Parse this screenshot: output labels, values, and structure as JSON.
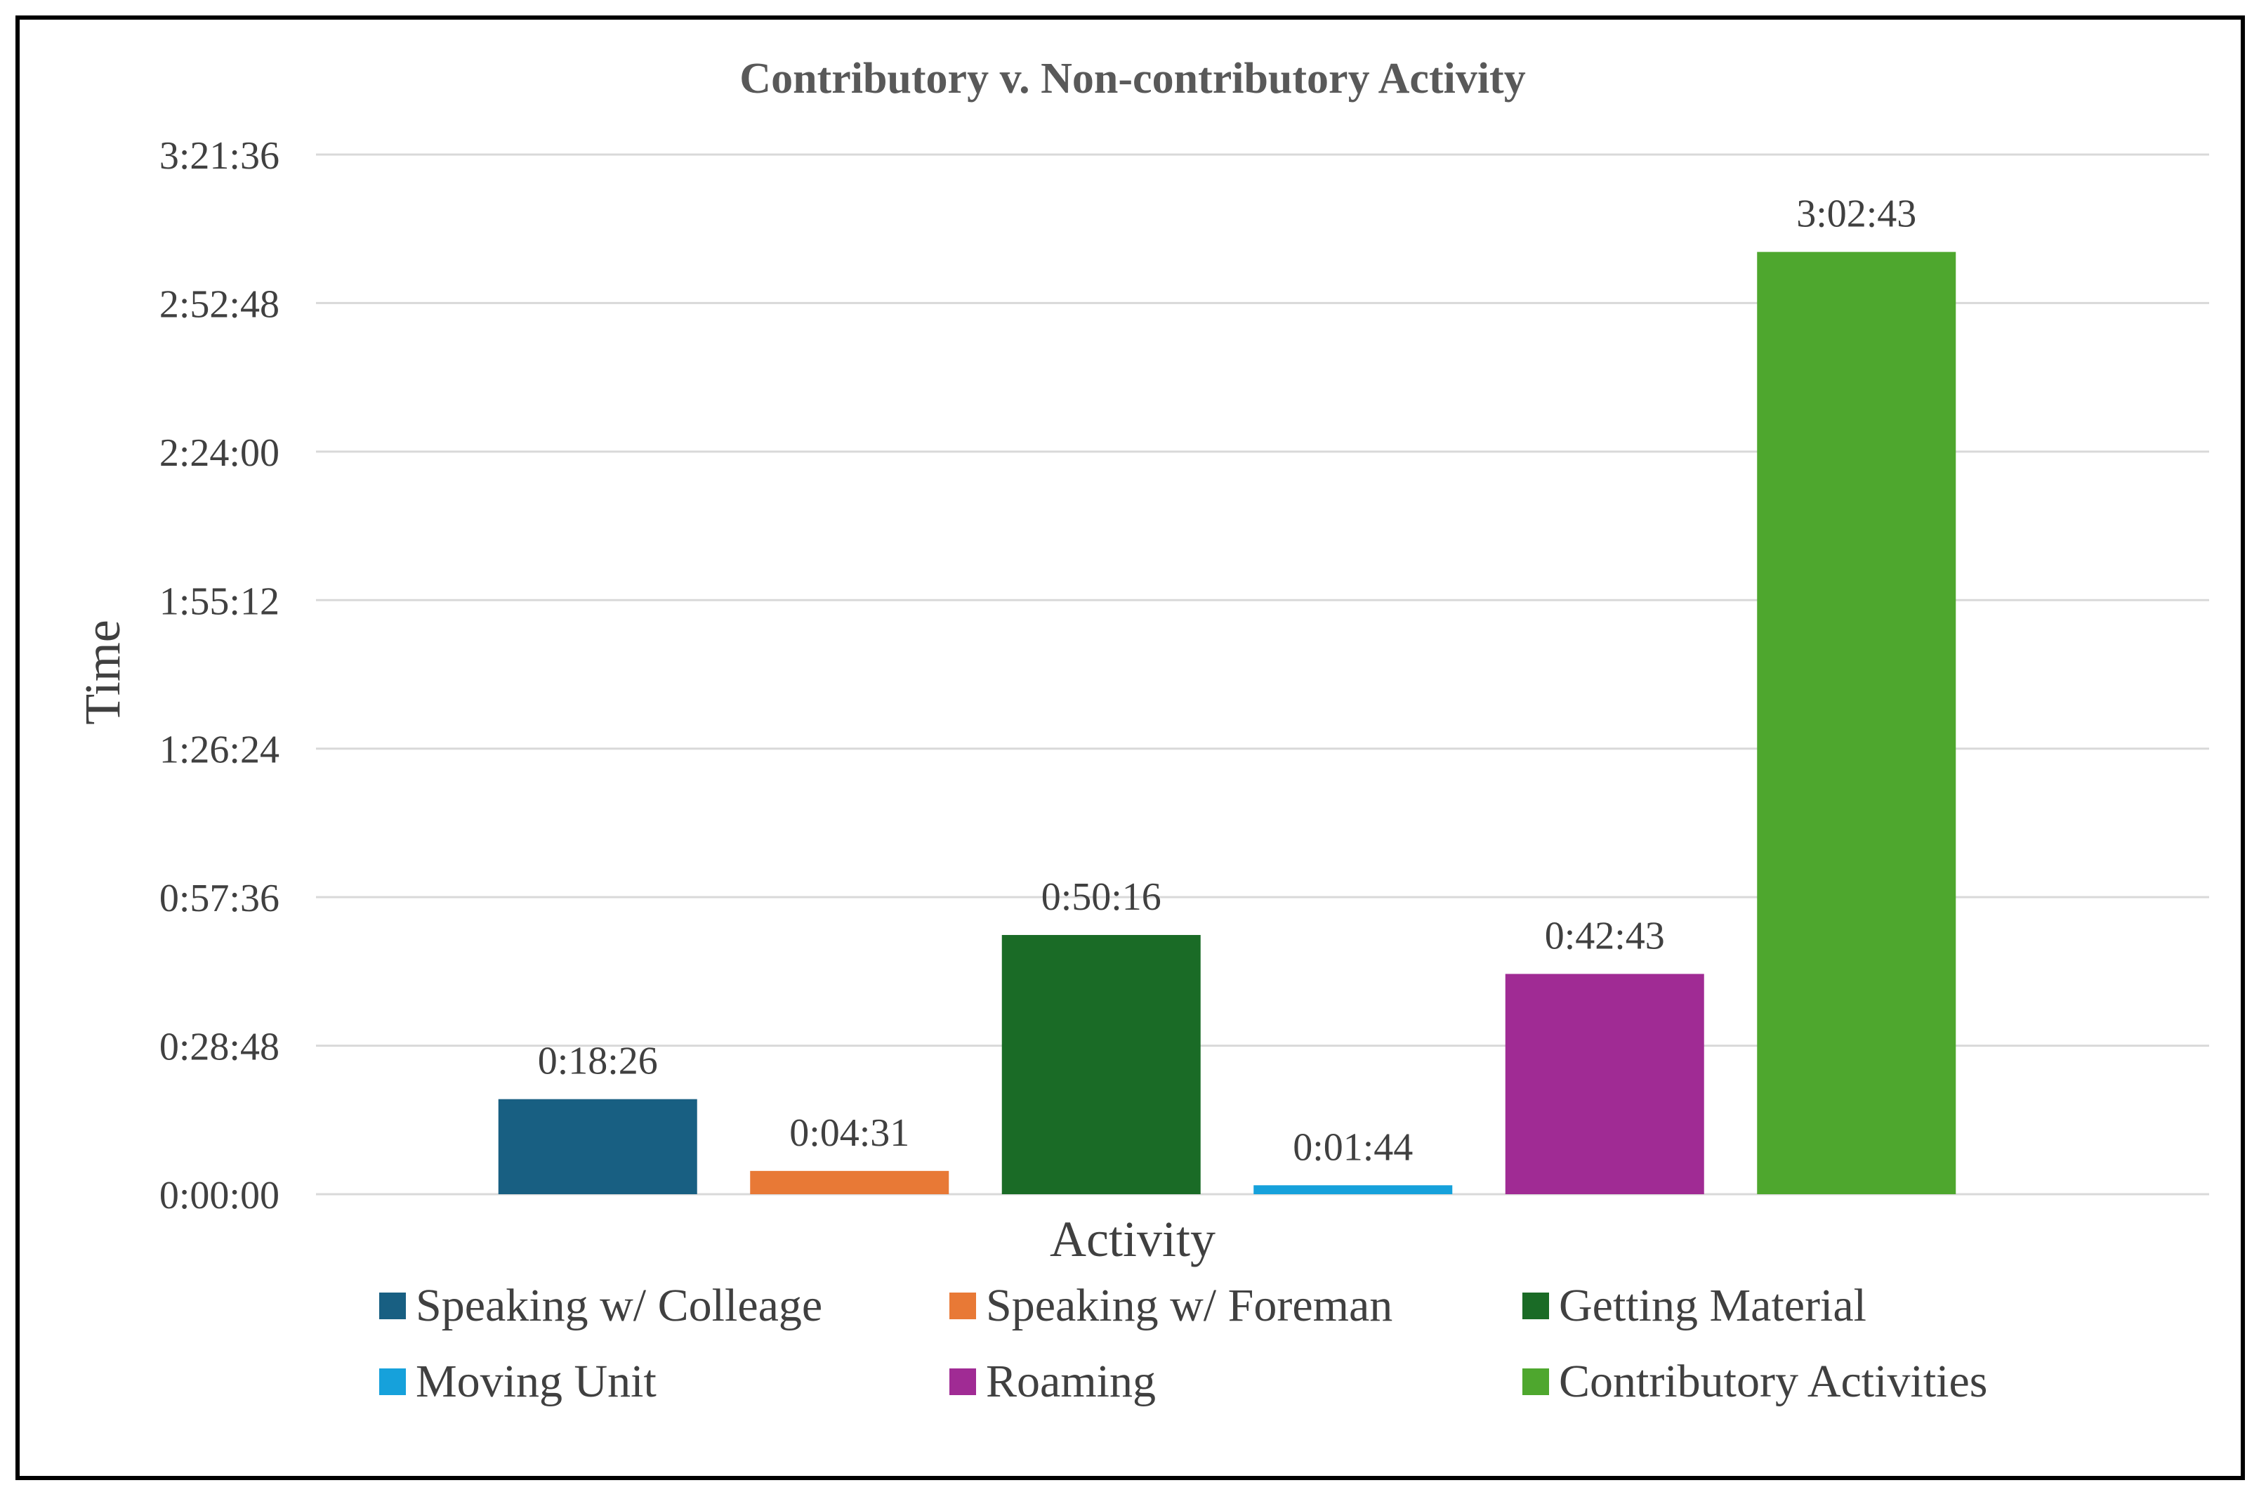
{
  "chart_data": {
    "type": "bar",
    "title": "Contributory v. Non-contributory Activity",
    "xlabel": "Activity",
    "ylabel": "Time",
    "ylim": [
      0,
      12096
    ],
    "y_ticks": [
      {
        "value": 0,
        "label": "0:00:00"
      },
      {
        "value": 1728,
        "label": "0:28:48"
      },
      {
        "value": 3456,
        "label": "0:57:36"
      },
      {
        "value": 5184,
        "label": "1:26:24"
      },
      {
        "value": 6912,
        "label": "1:55:12"
      },
      {
        "value": 8640,
        "label": "2:24:00"
      },
      {
        "value": 10368,
        "label": "2:52:48"
      },
      {
        "value": 12096,
        "label": "3:21:36"
      }
    ],
    "grid": true,
    "legend_position": "bottom",
    "series": [
      {
        "name": "Speaking w/ Colleage",
        "value": 1106,
        "label": "0:18:26",
        "color": "#185f82"
      },
      {
        "name": "Speaking w/ Foreman",
        "value": 271,
        "label": "0:04:31",
        "color": "#e87936"
      },
      {
        "name": "Getting Material",
        "value": 3016,
        "label": "0:50:16",
        "color": "#1a6b26"
      },
      {
        "name": "Moving Unit",
        "value": 104,
        "label": "0:01:44",
        "color": "#16a1db"
      },
      {
        "name": "Roaming",
        "value": 2563,
        "label": "0:42:43",
        "color": "#a02b94"
      },
      {
        "name": "Contributory Activities",
        "value": 10963,
        "label": "3:02:43",
        "color": "#4ea72e"
      }
    ]
  },
  "colors": {
    "grid": "#d9d9d9",
    "text": "#404040",
    "title": "#595959"
  }
}
